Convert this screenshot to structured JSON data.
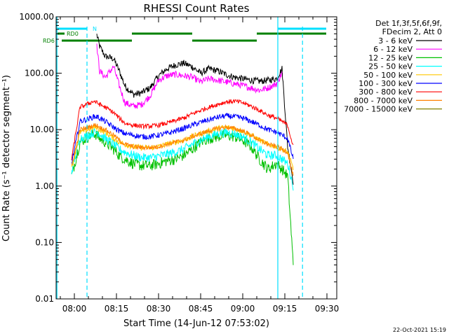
{
  "chart_data": {
    "type": "line",
    "title": "RHESSI Count Rates",
    "xlabel": "Start Time (14-Jun-12 07:53:02)",
    "ylabel": "Count Rate (s⁻¹ detector segment⁻¹)",
    "yscale": "log",
    "ylim": [
      0.01,
      1000
    ],
    "y_ticks": [
      "0.01",
      "0.10",
      "1.00",
      "10.00",
      "100.00",
      "1000.00"
    ],
    "xlim_minutes": [
      -6.5,
      93.5
    ],
    "x_ticks": [
      {
        "label": "08:00",
        "min": 0
      },
      {
        "label": "08:15",
        "min": 15
      },
      {
        "label": "08:30",
        "min": 30
      },
      {
        "label": "08:45",
        "min": 45
      },
      {
        "label": "09:00",
        "min": 60
      },
      {
        "label": "09:15",
        "min": 75
      },
      {
        "label": "09:30",
        "min": 90
      }
    ],
    "legend_header": [
      "Det 1f,3f,5f,6f,9f,",
      "FDecim 2, Att 0"
    ],
    "legend_placement": "right",
    "x_minutes": [
      -1,
      2,
      5,
      7,
      8,
      9,
      11,
      14,
      16,
      18,
      21,
      24,
      27,
      30,
      33,
      36,
      39,
      42,
      45,
      48,
      51,
      54,
      57,
      60,
      63,
      66,
      69,
      72,
      74,
      76,
      78
    ],
    "series": [
      {
        "name": "3 - 6 keV",
        "color": "#000000",
        "noise": 0.06,
        "values": [
          null,
          null,
          null,
          null,
          480,
          300,
          200,
          180,
          110,
          60,
          42,
          45,
          55,
          90,
          120,
          140,
          150,
          130,
          100,
          120,
          110,
          95,
          85,
          80,
          75,
          72,
          75,
          80,
          120,
          5,
          1.2
        ]
      },
      {
        "name": "6 - 12 keV",
        "color": "#ff00ff",
        "noise": 0.06,
        "values": [
          null,
          null,
          null,
          null,
          300,
          110,
          85,
          130,
          60,
          30,
          26,
          28,
          40,
          75,
          90,
          95,
          90,
          85,
          70,
          80,
          75,
          70,
          65,
          60,
          55,
          50,
          55,
          65,
          100,
          null,
          null
        ]
      },
      {
        "name": "12 - 25 keV",
        "color": "#00c000",
        "noise": 0.1,
        "values": [
          1.5,
          6,
          7.5,
          8.5,
          8,
          7,
          6,
          4.5,
          3.5,
          3,
          2.5,
          2.3,
          2.3,
          2.5,
          2.8,
          3,
          3.5,
          4.5,
          6,
          7,
          7.5,
          8,
          7.5,
          6.5,
          5,
          3,
          2,
          2.5,
          2,
          1.5,
          0.04
        ]
      },
      {
        "name": "25 - 50 keV",
        "color": "#00ffff",
        "noise": 0.08,
        "values": [
          1.8,
          7,
          8,
          9,
          9,
          8.5,
          7,
          5.5,
          4.5,
          4,
          3.5,
          3.2,
          3.2,
          3.4,
          3.7,
          4,
          4.5,
          5.5,
          6.5,
          7.5,
          8.5,
          9,
          8.5,
          7.5,
          6,
          4.5,
          3.5,
          3.5,
          3,
          2.5,
          1
        ]
      },
      {
        "name": "50 - 100 keV",
        "color": "#ffc800",
        "noise": 0.05,
        "values": [
          2,
          9,
          10,
          11,
          11,
          10,
          9,
          7,
          6,
          5.5,
          5,
          4.8,
          4.8,
          5,
          5.5,
          6,
          6.5,
          7.5,
          8.5,
          9.5,
          10.5,
          11,
          10.5,
          9.5,
          8,
          6.5,
          5.5,
          5,
          4.5,
          4,
          2
        ]
      },
      {
        "name": "100 - 300 keV",
        "color": "#0000ff",
        "noise": 0.05,
        "values": [
          2.5,
          14,
          15.5,
          17,
          17,
          16,
          14,
          11,
          9.5,
          8.5,
          8,
          7.5,
          7.5,
          8,
          8.5,
          9.5,
          10.5,
          12,
          13.5,
          15,
          16.5,
          17.5,
          17,
          16,
          14,
          12,
          10,
          9,
          8,
          7,
          3
        ]
      },
      {
        "name": "300 - 800 keV",
        "color": "#ff0000",
        "noise": 0.04,
        "values": [
          3,
          25,
          29,
          32,
          30,
          28,
          25,
          20,
          16,
          13,
          12,
          11.5,
          11.5,
          12,
          13,
          14.5,
          16,
          19,
          22,
          25,
          28,
          31,
          32,
          30,
          26,
          22,
          18,
          16,
          14,
          12,
          5
        ]
      },
      {
        "name": "800 - 7000 keV",
        "color": "#ff8000",
        "noise": 0.04,
        "values": [
          2.2,
          10,
          11,
          12,
          12,
          11,
          10,
          8,
          6.5,
          5.5,
          5,
          4.8,
          4.8,
          5,
          5.5,
          6,
          6.5,
          7.5,
          8.5,
          9.5,
          10.5,
          11,
          10.5,
          9.5,
          8,
          6.5,
          5.5,
          5,
          4.5,
          4,
          1.5
        ]
      },
      {
        "name": "7000 - 15000 keV",
        "color": "#808000",
        "noise": 0,
        "values": []
      }
    ],
    "state_bars": {
      "labels": [
        "RD0",
        "RD6"
      ],
      "n_label": "N",
      "line_colors": {
        "cyan": "#00e0ff",
        "green": "#008000"
      }
    },
    "vertical_markers": {
      "cyan_solid_min": [
        -6.2,
        72.5
      ],
      "cyan_dashed_min": [
        4.5,
        81.3
      ]
    }
  },
  "footer": {
    "timestamp": "22-Oct-2021 15:19"
  }
}
